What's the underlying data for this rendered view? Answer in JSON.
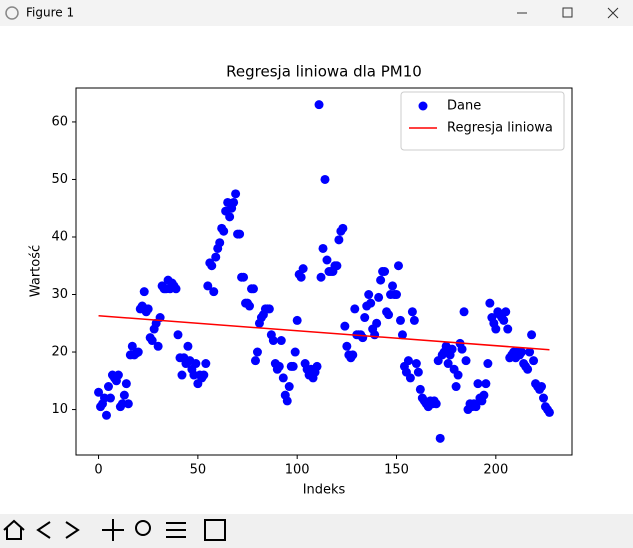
{
  "window": {
    "title": "Figure 1"
  },
  "chart_data": {
    "type": "scatter",
    "title": "Regresja liniowa dla PM10",
    "xlabel": "Indeks",
    "ylabel": "Wartość",
    "xlim": [
      -11.35,
      238.35
    ],
    "xticks": [
      0,
      50,
      100,
      150,
      200
    ],
    "ylim": [
      2.1,
      65.9
    ],
    "yticks": [
      10,
      20,
      30,
      40,
      50,
      60
    ],
    "legend": "upper right",
    "grid": false,
    "series": [
      {
        "name": "Dane",
        "type": "scatter",
        "color": "#0000ff",
        "x": [
          0,
          1,
          2,
          3,
          4,
          5,
          6,
          7,
          8,
          9,
          10,
          11,
          12,
          13,
          14,
          15,
          16,
          17,
          18,
          19,
          20,
          21,
          22,
          23,
          24,
          25,
          26,
          27,
          28,
          29,
          30,
          31,
          32,
          33,
          34,
          35,
          36,
          37,
          38,
          39,
          40,
          41,
          42,
          43,
          44,
          45,
          46,
          47,
          48,
          49,
          50,
          51,
          52,
          53,
          54,
          55,
          56,
          57,
          58,
          59,
          60,
          61,
          62,
          63,
          64,
          65,
          66,
          67,
          68,
          69,
          70,
          71,
          72,
          73,
          74,
          75,
          76,
          77,
          78,
          79,
          80,
          81,
          82,
          83,
          84,
          85,
          86,
          87,
          88,
          89,
          90,
          91,
          92,
          93,
          94,
          95,
          96,
          97,
          98,
          99,
          100,
          101,
          102,
          103,
          104,
          105,
          106,
          107,
          108,
          109,
          110,
          111,
          112,
          113,
          114,
          115,
          116,
          117,
          118,
          119,
          120,
          121,
          122,
          123,
          124,
          125,
          126,
          127,
          128,
          129,
          130,
          131,
          132,
          133,
          134,
          135,
          136,
          137,
          138,
          139,
          140,
          141,
          142,
          143,
          144,
          145,
          146,
          147,
          148,
          149,
          150,
          151,
          152,
          153,
          154,
          155,
          156,
          157,
          158,
          159,
          160,
          161,
          162,
          163,
          164,
          165,
          166,
          167,
          168,
          169,
          170,
          171,
          172,
          173,
          174,
          175,
          176,
          177,
          178,
          179,
          180,
          181,
          182,
          183,
          184,
          185,
          186,
          187,
          188,
          189,
          190,
          191,
          192,
          193,
          194,
          195,
          196,
          197,
          198,
          199,
          200,
          201,
          202,
          203,
          204,
          205,
          206,
          207,
          208,
          209,
          210,
          211,
          212,
          213,
          214,
          215,
          216,
          217,
          218,
          219,
          220,
          221,
          222,
          223,
          224,
          225,
          226,
          227
        ],
        "values": [
          13,
          10.5,
          11,
          12,
          9,
          14,
          12,
          16,
          15.5,
          15,
          16,
          10.5,
          11,
          12.5,
          14.5,
          11,
          19.5,
          21,
          19.5,
          19.8,
          20,
          27.5,
          28,
          30.5,
          27,
          27.5,
          22.5,
          22,
          24,
          25,
          21,
          26,
          31.5,
          31,
          31,
          32.5,
          31,
          32,
          31.5,
          31,
          23,
          19,
          16,
          19,
          18,
          21,
          18.5,
          17,
          16,
          18,
          14.5,
          16,
          15.5,
          16,
          18,
          31.5,
          35.5,
          35,
          30.5,
          36.5,
          38,
          39,
          41.5,
          41,
          44.5,
          46,
          43.5,
          45,
          46,
          47.5,
          40.5,
          40.5,
          33,
          33,
          28.5,
          28.5,
          28,
          31,
          31,
          18.5,
          20,
          25,
          26,
          26.5,
          27.5,
          27.5,
          27.5,
          23,
          22,
          18,
          17,
          17.5,
          22,
          15.5,
          12.5,
          11.5,
          14,
          17.5,
          17.5,
          20,
          25.5,
          33.5,
          33,
          34.5,
          18,
          17,
          16,
          17,
          15.5,
          16.5,
          17.5,
          63,
          33,
          38,
          50,
          36,
          34,
          34,
          34,
          35,
          35,
          39.5,
          41,
          41.5,
          24.5,
          21,
          19.5,
          19,
          19.5,
          27.5,
          23,
          23,
          23,
          22.5,
          26,
          28,
          30,
          28.5,
          24,
          23,
          25,
          29.5,
          32.5,
          34,
          34,
          27,
          26.5,
          30,
          31.5,
          30,
          30,
          35,
          25.5,
          23,
          17.5,
          16.5,
          18.5,
          15.5,
          27,
          25.5,
          18,
          16.5,
          13.5,
          12,
          11.5,
          11,
          10.5,
          11.5,
          11,
          11.5,
          11,
          18.5,
          5,
          19.5,
          20,
          21,
          18,
          19.5,
          20.5,
          17,
          14,
          16,
          21.5,
          20.5,
          27,
          18.5,
          10,
          11,
          10.5,
          11,
          10.5,
          14.5,
          12,
          11.5,
          12.5,
          14.5,
          18,
          28.5,
          26,
          25,
          24,
          27,
          26.5,
          26,
          25.5,
          27,
          24,
          19,
          19.5,
          20,
          19,
          20,
          19.5,
          20,
          18,
          17.5,
          17,
          20,
          23,
          18.5,
          14.5,
          14,
          13.5,
          14,
          12,
          10.5,
          10,
          9.5
        ]
      },
      {
        "name": "Regresja liniowa",
        "type": "line",
        "color": "#ff0000",
        "x": [
          0,
          227
        ],
        "values": [
          26.3,
          20.4
        ]
      }
    ]
  }
}
